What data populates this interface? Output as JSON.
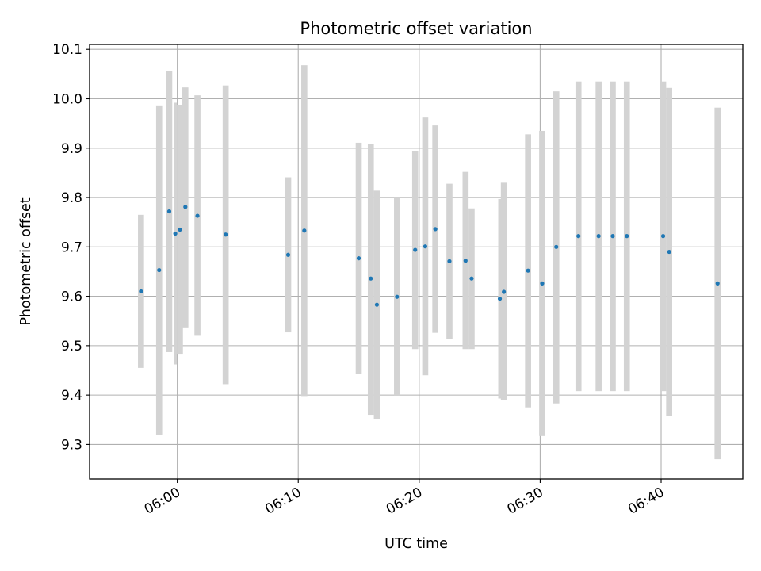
{
  "chart_data": {
    "type": "scatter",
    "title": "Photometric offset variation",
    "xlabel": "UTC time",
    "ylabel": "Photometric offset",
    "x_unit": "UTC HH:MM",
    "xlim": [
      "05:52:45",
      "06:46:45"
    ],
    "ylim": [
      9.23,
      10.11
    ],
    "x_ticks": [
      "06:00",
      "06:10",
      "06:20",
      "06:30",
      "06:40"
    ],
    "y_ticks": [
      "9.3",
      "9.4",
      "9.5",
      "9.6",
      "9.7",
      "9.8",
      "9.9",
      "10.0",
      "10.1"
    ],
    "grid": true,
    "colors": {
      "marker": "#1f77b4",
      "errorbar": "#d3d3d3",
      "grid": "#b0b0b0"
    },
    "series": [
      {
        "marker": "segment",
        "points": [
          {
            "x_start": "05:56:45",
            "x_end": "05:57:15",
            "y": 9.61,
            "ylo": 9.455,
            "yhi": 9.765
          },
          {
            "x_start": "05:58:15",
            "x_end": "05:58:45",
            "y": 9.653,
            "ylo": 9.32,
            "yhi": 9.985
          },
          {
            "x_start": "05:59:05",
            "x_end": "05:59:35",
            "y": 9.772,
            "ylo": 9.487,
            "yhi": 10.057
          },
          {
            "x_start": "05:59:45",
            "x_end": "05:59:55",
            "y": 9.727,
            "ylo": 9.462,
            "yhi": 9.992
          },
          {
            "x_start": "05:59:58",
            "x_end": "06:00:28",
            "y": 9.735,
            "ylo": 9.482,
            "yhi": 9.988
          },
          {
            "x_start": "06:00:25",
            "x_end": "06:00:55",
            "y": 9.781,
            "ylo": 9.537,
            "yhi": 10.023
          },
          {
            "x_start": "06:01:25",
            "x_end": "06:01:55",
            "y": 9.763,
            "ylo": 9.52,
            "yhi": 10.007
          },
          {
            "x_start": "06:03:45",
            "x_end": "06:04:15",
            "y": 9.725,
            "ylo": 9.422,
            "yhi": 10.027
          },
          {
            "x_start": "06:08:55",
            "x_end": "06:09:25",
            "y": 9.684,
            "ylo": 9.527,
            "yhi": 9.841
          },
          {
            "x_start": "06:10:15",
            "x_end": "06:10:45",
            "y": 9.733,
            "ylo": 9.398,
            "yhi": 10.068
          },
          {
            "x_start": "06:14:45",
            "x_end": "06:15:15",
            "y": 9.677,
            "ylo": 9.443,
            "yhi": 9.911
          },
          {
            "x_start": "06:15:45",
            "x_end": "06:16:15",
            "y": 9.636,
            "ylo": 9.36,
            "yhi": 9.909
          },
          {
            "x_start": "06:16:15",
            "x_end": "06:16:45",
            "y": 9.583,
            "ylo": 9.352,
            "yhi": 9.814
          },
          {
            "x_start": "06:17:55",
            "x_end": "06:18:25",
            "y": 9.599,
            "ylo": 9.4,
            "yhi": 9.8
          },
          {
            "x_start": "06:19:25",
            "x_end": "06:19:55",
            "y": 9.694,
            "ylo": 9.493,
            "yhi": 9.894
          },
          {
            "x_start": "06:20:15",
            "x_end": "06:20:45",
            "y": 9.701,
            "ylo": 9.44,
            "yhi": 9.962
          },
          {
            "x_start": "06:21:05",
            "x_end": "06:21:35",
            "y": 9.736,
            "ylo": 9.526,
            "yhi": 9.946
          },
          {
            "x_start": "06:22:15",
            "x_end": "06:22:45",
            "y": 9.671,
            "ylo": 9.514,
            "yhi": 9.828
          },
          {
            "x_start": "06:23:35",
            "x_end": "06:24:05",
            "y": 9.672,
            "ylo": 9.493,
            "yhi": 9.852
          },
          {
            "x_start": "06:24:05",
            "x_end": "06:24:35",
            "y": 9.636,
            "ylo": 9.493,
            "yhi": 9.778
          },
          {
            "x_start": "06:26:35",
            "x_end": "06:26:45",
            "y": 9.595,
            "ylo": 9.393,
            "yhi": 9.797
          },
          {
            "x_start": "06:26:45",
            "x_end": "06:27:15",
            "y": 9.609,
            "ylo": 9.389,
            "yhi": 9.83
          },
          {
            "x_start": "06:28:45",
            "x_end": "06:29:15",
            "y": 9.652,
            "ylo": 9.375,
            "yhi": 9.928
          },
          {
            "x_start": "06:29:55",
            "x_end": "06:30:25",
            "y": 9.626,
            "ylo": 9.317,
            "yhi": 9.935
          },
          {
            "x_start": "06:31:05",
            "x_end": "06:31:35",
            "y": 9.7,
            "ylo": 9.383,
            "yhi": 10.015
          },
          {
            "x_start": "06:32:55",
            "x_end": "06:33:25",
            "y": 9.722,
            "ylo": 9.408,
            "yhi": 10.035
          },
          {
            "x_start": "06:34:35",
            "x_end": "06:35:05",
            "y": 9.722,
            "ylo": 9.408,
            "yhi": 10.035
          },
          {
            "x_start": "06:35:45",
            "x_end": "06:36:15",
            "y": 9.722,
            "ylo": 9.408,
            "yhi": 10.035
          },
          {
            "x_start": "06:36:55",
            "x_end": "06:37:25",
            "y": 9.722,
            "ylo": 9.408,
            "yhi": 10.035
          },
          {
            "x_start": "06:39:55",
            "x_end": "06:40:25",
            "y": 9.722,
            "ylo": 9.408,
            "yhi": 10.035
          },
          {
            "x_start": "06:40:25",
            "x_end": "06:40:55",
            "y": 9.69,
            "ylo": 9.358,
            "yhi": 10.022
          },
          {
            "x_start": "06:44:25",
            "x_end": "06:44:55",
            "y": 9.626,
            "ylo": 9.27,
            "yhi": 9.982
          }
        ]
      }
    ]
  }
}
